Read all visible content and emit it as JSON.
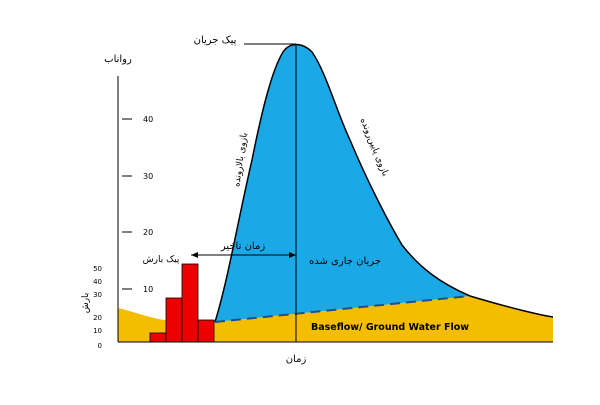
{
  "labels": {
    "peak_flow": "پیک جریان",
    "runoff_axis": "رواناب",
    "rising_limb": "بازوی بالارونده",
    "falling_limb": "بازوی پایین‌رونده",
    "lag_time": "زمان تاخیر",
    "peak_rainfall": "پیک بارش",
    "direct_runoff": "جریان جاری شده",
    "rainfall_axis": "بارش",
    "baseflow": "Baseflow/ Ground Water Flow",
    "time_axis": "زمان"
  },
  "runoff_ticks": [
    "40",
    "30",
    "20",
    "10"
  ],
  "rain_ticks": [
    "50",
    "40",
    "30",
    "20",
    "10",
    "0"
  ],
  "colors": {
    "runoff_fill": "#1aa9e6",
    "baseflow_fill": "#f5bd00",
    "rain_bar": "#ee0000",
    "separation_line": "#1f4f8f",
    "line": "#000000"
  }
}
